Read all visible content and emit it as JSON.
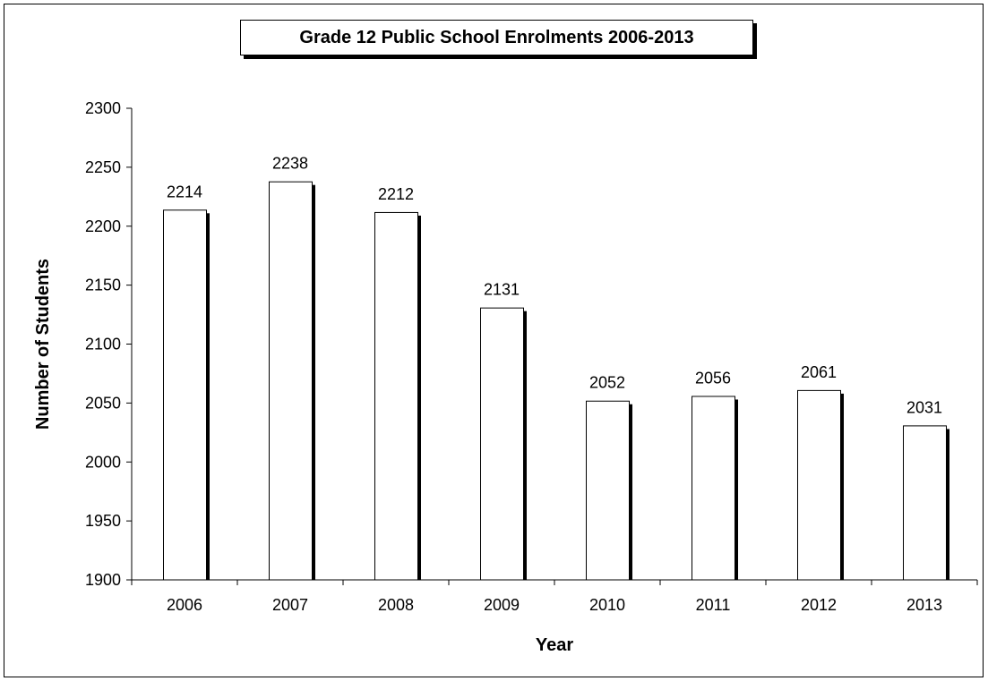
{
  "chart_data": {
    "type": "bar",
    "title": "Grade 12 Public School Enrolments 2006-2013",
    "xlabel": "Year",
    "ylabel": "Number of Students",
    "categories": [
      "2006",
      "2007",
      "2008",
      "2009",
      "2010",
      "2011",
      "2012",
      "2013"
    ],
    "values": [
      2214,
      2238,
      2212,
      2131,
      2052,
      2056,
      2061,
      2031
    ],
    "data_labels": [
      "2214",
      "2238",
      "2212",
      "2131",
      "2052",
      "2056",
      "2061",
      "2031"
    ],
    "ylim": [
      1900,
      2300
    ],
    "yticks": [
      1900,
      1950,
      2000,
      2050,
      2100,
      2150,
      2200,
      2250,
      2300
    ],
    "ytick_labels": [
      "1900",
      "1950",
      "2000",
      "2050",
      "2100",
      "2150",
      "2200",
      "2250",
      "2300"
    ],
    "grid": false,
    "legend": "none",
    "colors": {
      "bar_fill": "#ffffff",
      "bar_stroke": "#000000",
      "bar_shadow": "#000000",
      "axis": "#000000",
      "background": "#ffffff"
    }
  }
}
